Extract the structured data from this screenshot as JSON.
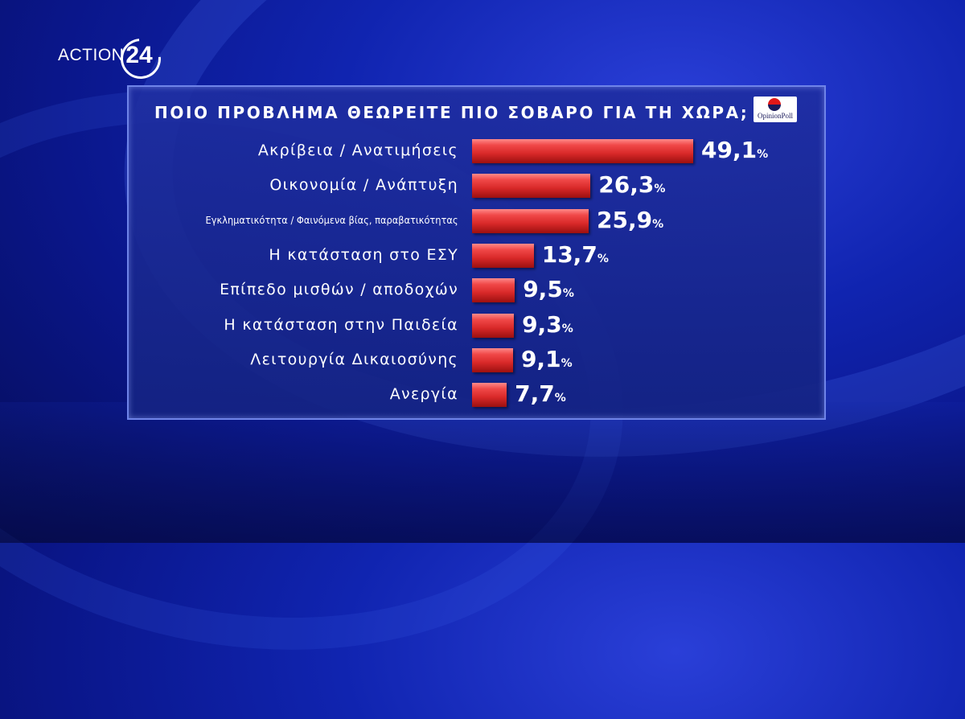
{
  "brand": {
    "logo_text": "ACTION",
    "logo_number": "24"
  },
  "badge": {
    "text": "OpinionPoll"
  },
  "title": "ΠΟΙΟ ΠΡΟΒΛΗΜΑ ΘΕΩΡΕΙΤΕ ΠΙΟ ΣΟΒΑΡΟ ΓΙΑ ΤΗ ΧΩΡΑ;",
  "colors": {
    "bar": "#e03232",
    "background": "#0d1d9e",
    "panel": "#1e2d9c"
  },
  "chart_data": {
    "type": "bar",
    "orientation": "horizontal",
    "title": "ΠΟΙΟ ΠΡΟΒΛΗΜΑ ΘΕΩΡΕΙΤΕ ΠΙΟ ΣΟΒΑΡΟ ΓΙΑ ΤΗ ΧΩΡΑ;",
    "unit": "%",
    "categories": [
      "Ακρίβεια / Ανατιμήσεις",
      "Οικονομία / Ανάπτυξη",
      "Εγκληματικότητα / Φαινόμενα βίας, παραβατικότητας",
      "Η κατάσταση στο ΕΣΥ",
      "Επίπεδο μισθών / αποδοχών",
      "Η κατάσταση στην Παιδεία",
      "Λειτουργία Δικαιοσύνης",
      "Ανεργία"
    ],
    "values": [
      49.1,
      26.3,
      25.9,
      13.7,
      9.5,
      9.3,
      9.1,
      7.7
    ],
    "value_labels": [
      "49,1",
      "26,3",
      "25,9",
      "13,7",
      "9,5",
      "9,3",
      "9,1",
      "7,7"
    ],
    "xlim": [
      0,
      50
    ]
  }
}
